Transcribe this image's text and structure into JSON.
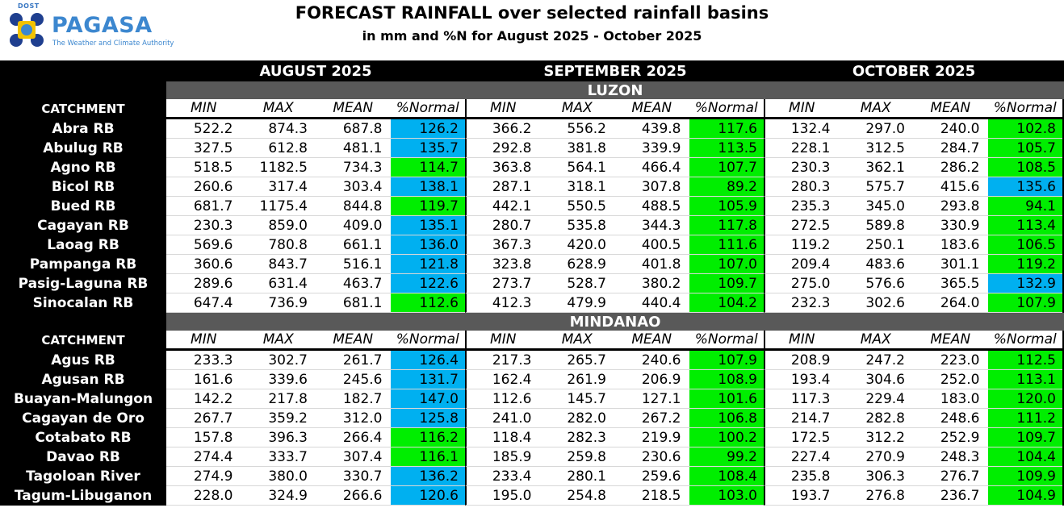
{
  "header": {
    "logo_small": "DOST",
    "logo_brand": "PAGASA",
    "logo_tagline": "The Weather and Climate Authority",
    "title": "FORECAST RAINFALL over selected rainfall basins",
    "subtitle": "in mm and %N for August 2025 - October 2025"
  },
  "colors": {
    "above_normal": "#00b0f0",
    "near_normal": "#00ee00",
    "region_bar": "#595959"
  },
  "months": [
    "AUGUST 2025",
    "SEPTEMBER 2025",
    "OCTOBER 2025"
  ],
  "catchment_label": "CATCHMENT",
  "column_labels": [
    "MIN",
    "MAX",
    "MEAN",
    "%Normal"
  ],
  "regions": [
    {
      "name": "LUZON",
      "rows": [
        {
          "name": "Abra RB",
          "m": [
            [
              "522.2",
              "874.3",
              "687.8",
              "126.2",
              "blue"
            ],
            [
              "366.2",
              "556.2",
              "439.8",
              "117.6",
              "green"
            ],
            [
              "132.4",
              "297.0",
              "240.0",
              "102.8",
              "green"
            ]
          ]
        },
        {
          "name": "Abulug RB",
          "m": [
            [
              "327.5",
              "612.8",
              "481.1",
              "135.7",
              "blue"
            ],
            [
              "292.8",
              "381.8",
              "339.9",
              "113.5",
              "green"
            ],
            [
              "228.1",
              "312.5",
              "284.7",
              "105.7",
              "green"
            ]
          ]
        },
        {
          "name": "Agno RB",
          "m": [
            [
              "518.5",
              "1182.5",
              "734.3",
              "114.7",
              "green"
            ],
            [
              "363.8",
              "564.1",
              "466.4",
              "107.7",
              "green"
            ],
            [
              "230.3",
              "362.1",
              "286.2",
              "108.5",
              "green"
            ]
          ]
        },
        {
          "name": "Bicol RB",
          "m": [
            [
              "260.6",
              "317.4",
              "303.4",
              "138.1",
              "blue"
            ],
            [
              "287.1",
              "318.1",
              "307.8",
              "89.2",
              "green"
            ],
            [
              "280.3",
              "575.7",
              "415.6",
              "135.6",
              "blue"
            ]
          ]
        },
        {
          "name": "Bued RB",
          "m": [
            [
              "681.7",
              "1175.4",
              "844.8",
              "119.7",
              "green"
            ],
            [
              "442.1",
              "550.5",
              "488.5",
              "105.9",
              "green"
            ],
            [
              "235.3",
              "345.0",
              "293.8",
              "94.1",
              "green"
            ]
          ]
        },
        {
          "name": "Cagayan RB",
          "m": [
            [
              "230.3",
              "859.0",
              "409.0",
              "135.1",
              "blue"
            ],
            [
              "280.7",
              "535.8",
              "344.3",
              "117.8",
              "green"
            ],
            [
              "272.5",
              "589.8",
              "330.9",
              "113.4",
              "green"
            ]
          ]
        },
        {
          "name": "Laoag RB",
          "m": [
            [
              "569.6",
              "780.8",
              "661.1",
              "136.0",
              "blue"
            ],
            [
              "367.3",
              "420.0",
              "400.5",
              "111.6",
              "green"
            ],
            [
              "119.2",
              "250.1",
              "183.6",
              "106.5",
              "green"
            ]
          ]
        },
        {
          "name": "Pampanga RB",
          "m": [
            [
              "360.6",
              "843.7",
              "516.1",
              "121.8",
              "blue"
            ],
            [
              "323.8",
              "628.9",
              "401.8",
              "107.0",
              "green"
            ],
            [
              "209.4",
              "483.6",
              "301.1",
              "119.2",
              "green"
            ]
          ]
        },
        {
          "name": "Pasig-Laguna RB",
          "m": [
            [
              "289.6",
              "631.4",
              "463.7",
              "122.6",
              "blue"
            ],
            [
              "273.7",
              "528.7",
              "380.2",
              "109.7",
              "green"
            ],
            [
              "275.0",
              "576.6",
              "365.5",
              "132.9",
              "blue"
            ]
          ]
        },
        {
          "name": "Sinocalan RB",
          "m": [
            [
              "647.4",
              "736.9",
              "681.1",
              "112.6",
              "green"
            ],
            [
              "412.3",
              "479.9",
              "440.4",
              "104.2",
              "green"
            ],
            [
              "232.3",
              "302.6",
              "264.0",
              "107.9",
              "green"
            ]
          ]
        }
      ]
    },
    {
      "name": "MINDANAO",
      "rows": [
        {
          "name": "Agus RB",
          "m": [
            [
              "233.3",
              "302.7",
              "261.7",
              "126.4",
              "blue"
            ],
            [
              "217.3",
              "265.7",
              "240.6",
              "107.9",
              "green"
            ],
            [
              "208.9",
              "247.2",
              "223.0",
              "112.5",
              "green"
            ]
          ]
        },
        {
          "name": "Agusan RB",
          "m": [
            [
              "161.6",
              "339.6",
              "245.6",
              "131.7",
              "blue"
            ],
            [
              "162.4",
              "261.9",
              "206.9",
              "108.9",
              "green"
            ],
            [
              "193.4",
              "304.6",
              "252.0",
              "113.1",
              "green"
            ]
          ]
        },
        {
          "name": "Buayan-Malungon",
          "m": [
            [
              "142.2",
              "217.8",
              "182.7",
              "147.0",
              "blue"
            ],
            [
              "112.6",
              "145.7",
              "127.1",
              "101.6",
              "green"
            ],
            [
              "117.3",
              "229.4",
              "183.0",
              "120.0",
              "green"
            ]
          ]
        },
        {
          "name": "Cagayan de Oro",
          "m": [
            [
              "267.7",
              "359.2",
              "312.0",
              "125.8",
              "blue"
            ],
            [
              "241.0",
              "282.0",
              "267.2",
              "106.8",
              "green"
            ],
            [
              "214.7",
              "282.8",
              "248.6",
              "111.2",
              "green"
            ]
          ]
        },
        {
          "name": "Cotabato RB",
          "m": [
            [
              "157.8",
              "396.3",
              "266.4",
              "116.2",
              "green"
            ],
            [
              "118.4",
              "282.3",
              "219.9",
              "100.2",
              "green"
            ],
            [
              "172.5",
              "312.2",
              "252.9",
              "109.7",
              "green"
            ]
          ]
        },
        {
          "name": "Davao RB",
          "m": [
            [
              "274.4",
              "333.7",
              "307.4",
              "116.1",
              "green"
            ],
            [
              "185.9",
              "259.8",
              "230.6",
              "99.2",
              "green"
            ],
            [
              "227.4",
              "270.9",
              "248.3",
              "104.4",
              "green"
            ]
          ]
        },
        {
          "name": "Tagoloan River",
          "m": [
            [
              "274.9",
              "380.0",
              "330.7",
              "136.2",
              "blue"
            ],
            [
              "233.4",
              "280.1",
              "259.6",
              "108.4",
              "green"
            ],
            [
              "235.8",
              "306.3",
              "276.7",
              "109.9",
              "green"
            ]
          ]
        },
        {
          "name": "Tagum-Libuganon",
          "m": [
            [
              "228.0",
              "324.9",
              "266.6",
              "120.6",
              "blue"
            ],
            [
              "195.0",
              "254.8",
              "218.5",
              "103.0",
              "green"
            ],
            [
              "193.7",
              "276.8",
              "236.7",
              "104.9",
              "green"
            ]
          ]
        }
      ]
    }
  ]
}
